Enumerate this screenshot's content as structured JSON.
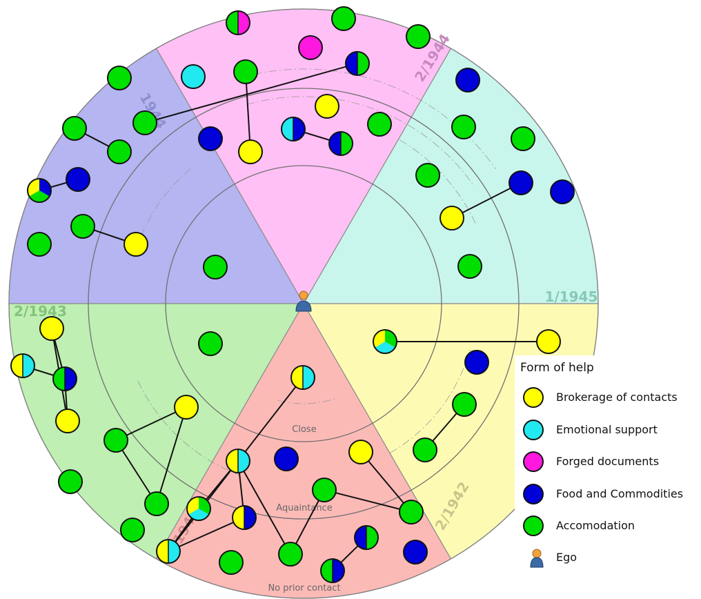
{
  "diagram": {
    "ego_label": "Ego",
    "ring_labels": [
      "Close",
      "Aquaintance",
      "No prior contact"
    ],
    "sectors": [
      {
        "label": "1/1945",
        "color": "#c9f6ec"
      },
      {
        "label": "2/1944",
        "color": "#ffc0f5"
      },
      {
        "label": "1944",
        "color": "#b5b5f2"
      },
      {
        "label": "2/1943",
        "color": "#bfefb3"
      },
      {
        "label": "1943",
        "color": "#fcbab7"
      },
      {
        "label": "2/1942",
        "color": "#fdfbb3"
      }
    ]
  },
  "legend": {
    "title": "Form of help",
    "items": [
      {
        "label": "Brokerage of contacts",
        "color": "#ffff00"
      },
      {
        "label": "Emotional support",
        "color": "#22e9f0"
      },
      {
        "label": "Forged documents",
        "color": "#ff18e0"
      },
      {
        "label": "Food and Commodities",
        "color": "#0000d8"
      },
      {
        "label": "Accomodation",
        "color": "#00e000"
      }
    ],
    "ego_label": "Ego"
  }
}
